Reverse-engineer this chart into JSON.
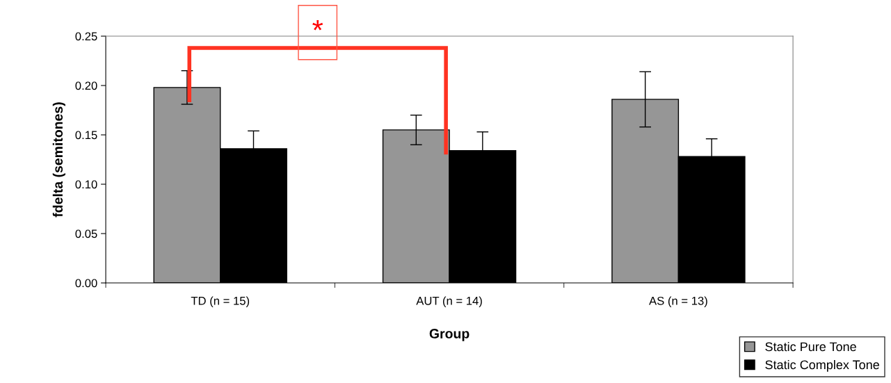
{
  "chart_data": {
    "type": "bar",
    "xlabel": "Group",
    "ylabel": "fdelta (semitones)",
    "categories": [
      "TD (n = 15)",
      "AUT (n = 14)",
      "AS (n = 13)"
    ],
    "series": [
      {
        "name": "Static Pure Tone",
        "color": "#969696",
        "values": [
          0.198,
          0.155,
          0.186
        ],
        "errors": [
          0.017,
          0.015,
          0.028
        ]
      },
      {
        "name": "Static Complex Tone",
        "color": "#000000",
        "values": [
          0.136,
          0.134,
          0.128
        ],
        "errors": [
          0.018,
          0.019,
          0.018
        ]
      }
    ],
    "ylim": [
      0,
      0.25
    ],
    "yticks": [
      {
        "value": 0,
        "label": "0.00"
      },
      {
        "value": 0.05,
        "label": "0.05"
      },
      {
        "value": 0.1,
        "label": "0.10"
      },
      {
        "value": 0.15,
        "label": "0.15"
      },
      {
        "value": 0.2,
        "label": "0.20"
      },
      {
        "value": 0.25,
        "label": "0.25"
      }
    ],
    "annotations": [
      "*"
    ],
    "legend": "bottom right",
    "grid": false
  }
}
